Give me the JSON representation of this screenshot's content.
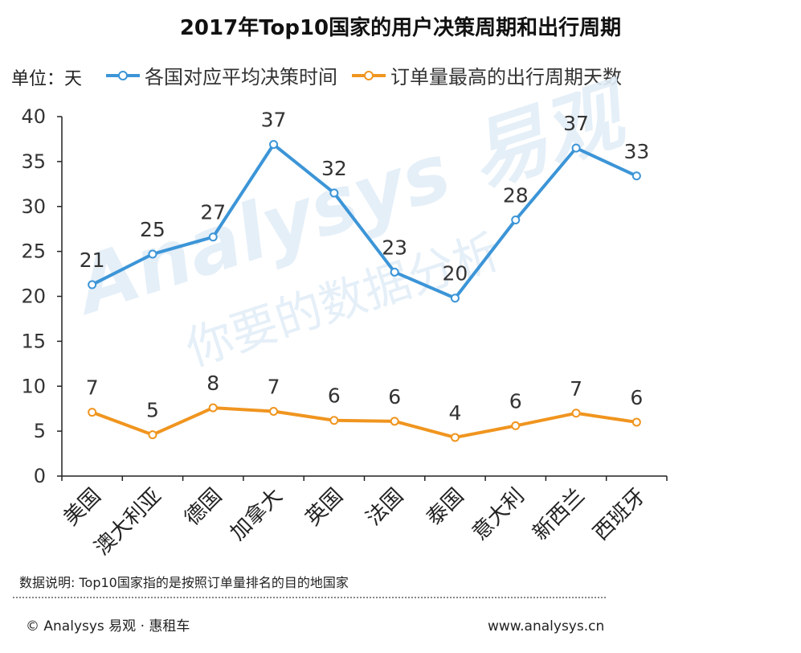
{
  "chart_data": {
    "type": "line",
    "title": "2017年Top10国家的用户决策周期和出行周期",
    "unit_label": "单位：天",
    "categories": [
      "美国",
      "澳大利亚",
      "德国",
      "加拿大",
      "英国",
      "法国",
      "泰国",
      "意大利",
      "新西兰",
      "西班牙"
    ],
    "ylim": [
      0,
      40
    ],
    "yticks": [
      0,
      5,
      10,
      15,
      20,
      25,
      30,
      35,
      40
    ],
    "grid": false,
    "legend_position": "top-left",
    "series": [
      {
        "name": "各国对应平均决策时间",
        "color": "#3c95d7",
        "values": [
          21.3,
          24.7,
          26.6,
          36.9,
          31.5,
          22.7,
          19.8,
          28.5,
          36.5,
          33.4
        ],
        "labels": [
          "21",
          "25",
          "27",
          "37",
          "32",
          "23",
          "20",
          "28",
          "37",
          "33"
        ]
      },
      {
        "name": "订单量最高的出行周期天数",
        "color": "#f0951f",
        "values": [
          7.1,
          4.6,
          7.6,
          7.2,
          6.2,
          6.1,
          4.3,
          5.6,
          7.0,
          6.0
        ],
        "labels": [
          "7",
          "5",
          "8",
          "7",
          "6",
          "6",
          "4",
          "6",
          "7",
          "6"
        ]
      }
    ]
  },
  "watermark": {
    "line1": "Analysys 易观",
    "line2": "你要的数据分析"
  },
  "footer": {
    "note": "数据说明: Top10国家指的是按照订单量排名的目的地国家",
    "copyright": "© Analysys 易观 · 惠租车",
    "website": "www.analysys.cn"
  }
}
